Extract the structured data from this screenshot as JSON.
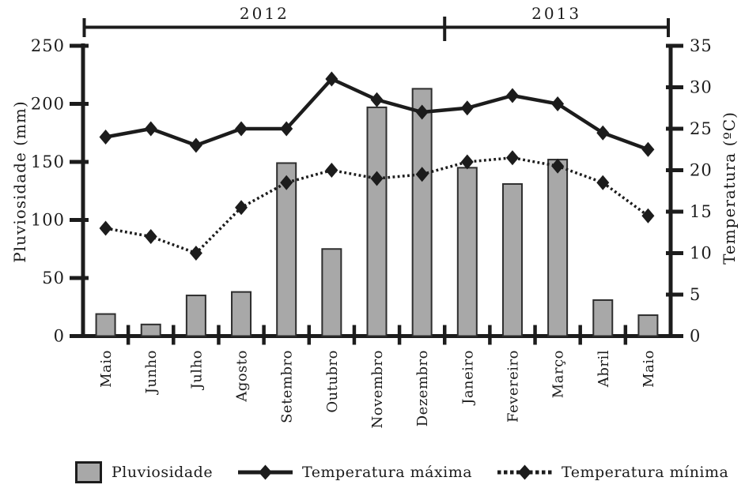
{
  "chart_data": {
    "type": "bar",
    "subtype": "combo-bar-and-lines",
    "categories": [
      "Maio",
      "Junho",
      "Julho",
      "Agosto",
      "Setembro",
      "Outubro",
      "Novembro",
      "Dezembro",
      "Janeiro",
      "Fevereiro",
      "Março",
      "Abril",
      "Maio"
    ],
    "year_groups": [
      {
        "label": "2012",
        "start": 0,
        "end": 8
      },
      {
        "label": "2013",
        "start": 8,
        "end": 13
      }
    ],
    "series": [
      {
        "name": "Pluviosidade",
        "type": "bar",
        "axis": "left",
        "values": [
          19,
          10,
          35,
          38,
          149,
          75,
          197,
          213,
          145,
          131,
          152,
          31,
          18
        ]
      },
      {
        "name": "Temperatura máxima",
        "type": "line",
        "style": "solid-diamond",
        "axis": "right",
        "values": [
          24,
          25,
          23,
          25,
          25,
          31,
          28.5,
          27,
          27.5,
          29,
          28,
          24.5,
          22.5
        ]
      },
      {
        "name": "Temperatura mínima",
        "type": "line",
        "style": "dotted-diamond",
        "axis": "right",
        "values": [
          13,
          12,
          10,
          15.5,
          18.5,
          20,
          19,
          19.5,
          21,
          21.5,
          20.5,
          18.5,
          14.5
        ]
      }
    ],
    "left_axis": {
      "label": "Pluviosidade (mm)",
      "min": 0,
      "max": 250,
      "tick_step": 50,
      "ticks": [
        "0",
        "50",
        "100",
        "150",
        "200",
        "250"
      ]
    },
    "right_axis": {
      "label": "Temperatura (ºC)",
      "min": 0,
      "max": 35,
      "tick_step": 5,
      "ticks": [
        "0",
        "5",
        "10",
        "15",
        "20",
        "25",
        "30",
        "35"
      ]
    },
    "grid": "off",
    "legend_position": "bottom"
  },
  "legend": {
    "pluviosidade": "Pluviosidade",
    "temperatura_maxima": "Temperatura máxima",
    "temperatura_minima": "Temperatura mínima"
  },
  "colors": {
    "bar_fill": "#a8a8a8",
    "bar_border": "#2e2e2e",
    "line_color": "#1c1c1c",
    "text_color": "#1c1c1c",
    "background": "#ffffff"
  }
}
